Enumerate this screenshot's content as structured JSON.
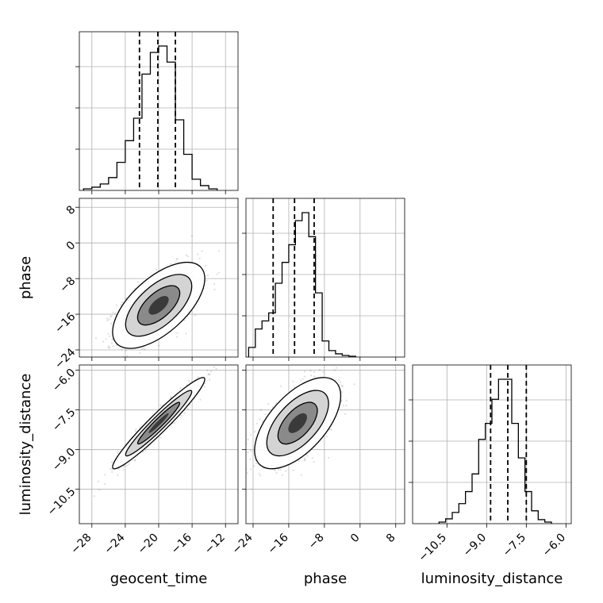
{
  "chart_data": {
    "type": "corner",
    "parameters": [
      "geocent_time",
      "phase",
      "luminosity_distance"
    ],
    "axis_labels": {
      "geocent_time": "geocent_time",
      "phase": "phase",
      "luminosity_distance": "luminosity_distance"
    },
    "ranges": {
      "geocent_time": [
        -29.5,
        -10.5
      ],
      "phase": [
        -25.6,
        10.0
      ],
      "luminosity_distance": [
        -11.8,
        -5.8
      ]
    },
    "ticks": {
      "geocent_time": [
        -28,
        -24,
        -20,
        -16,
        -12
      ],
      "phase": [
        -24,
        -16,
        -8,
        0,
        8
      ],
      "luminosity_distance": [
        -10.5,
        -9.0,
        -7.5,
        -6.0
      ]
    },
    "tick_labels": {
      "geocent_time": [
        "−28",
        "−24",
        "−20",
        "−16",
        "−12"
      ],
      "phase": [
        "−24",
        "−16",
        "−8",
        "0",
        "8"
      ],
      "luminosity_distance": [
        "−10.5",
        "−9.0",
        "−7.5",
        "−6.0"
      ]
    },
    "grid": true,
    "quantiles": {
      "geocent_time": [
        -22.3,
        -20.1,
        -18.0
      ],
      "phase": [
        -19.5,
        -14.7,
        -10.3
      ],
      "luminosity_distance": [
        -8.85,
        -8.2,
        -7.5
      ]
    },
    "histograms": {
      "geocent_time": {
        "edges": [
          -29,
          -28,
          -27,
          -26,
          -25,
          -24,
          -23,
          -22,
          -21,
          -20,
          -19,
          -18,
          -17,
          -16,
          -15,
          -14,
          -13
        ],
        "counts": [
          2,
          4,
          8,
          16,
          35,
          62,
          90,
          145,
          172,
          180,
          160,
          88,
          45,
          14,
          6,
          2
        ]
      },
      "phase": {
        "edges": [
          -25,
          -23.5,
          -22,
          -20.5,
          -19,
          -17.5,
          -16,
          -14.5,
          -13,
          -11.5,
          -10,
          -8.5,
          -7,
          -5.5,
          -4,
          -2.5,
          -1
        ],
        "counts": [
          12,
          35,
          45,
          55,
          92,
          118,
          140,
          170,
          180,
          150,
          80,
          20,
          8,
          4,
          2,
          1
        ]
      },
      "luminosity_distance": {
        "edges": [
          -10.8,
          -10.55,
          -10.3,
          -10.05,
          -9.8,
          -9.55,
          -9.3,
          -9.05,
          -8.8,
          -8.55,
          -8.3,
          -8.05,
          -7.8,
          -7.55,
          -7.3,
          -7.05,
          -6.8,
          -6.55
        ],
        "counts": [
          2,
          6,
          14,
          25,
          40,
          62,
          105,
          125,
          155,
          180,
          180,
          125,
          82,
          40,
          16,
          5,
          2
        ]
      }
    },
    "pair_correlation": {
      "geocent_time|phase": {
        "mean": [
          -20.0,
          -14.0
        ],
        "sd": [
          2.4,
          4.2
        ],
        "rho": 0.62
      },
      "geocent_time|luminosity_distance": {
        "mean": [
          -20.0,
          -8.0
        ],
        "sd": [
          2.4,
          0.75
        ],
        "rho": 0.96
      },
      "phase|luminosity_distance": {
        "mean": [
          -14.0,
          -8.0
        ],
        "sd": [
          4.2,
          0.75
        ],
        "rho": 0.6
      }
    }
  }
}
